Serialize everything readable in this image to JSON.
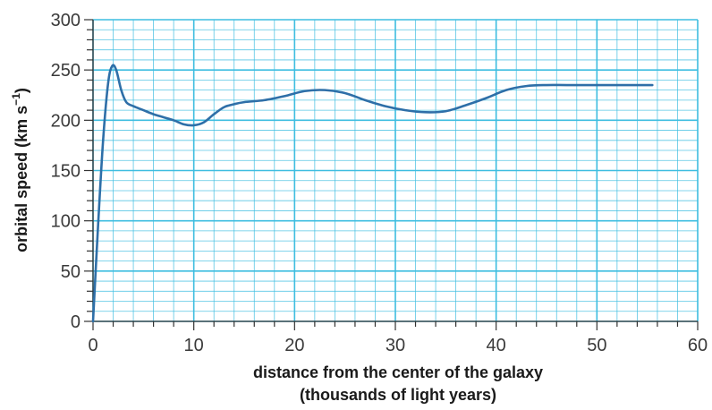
{
  "chart_data": {
    "type": "line",
    "xlabel_line1": "distance from the center of the galaxy",
    "xlabel_line2": "(thousands of light years)",
    "ylabel_main": "orbital speed (km s",
    "ylabel_sup": "−1",
    "ylabel_close": ")",
    "xlim": [
      0,
      60
    ],
    "ylim": [
      0,
      300
    ],
    "x_ticks": [
      0,
      10,
      20,
      30,
      40,
      50,
      60
    ],
    "y_ticks": [
      0,
      50,
      100,
      150,
      200,
      250,
      300
    ],
    "x_tick_labels": [
      "0",
      "10",
      "20",
      "30",
      "40",
      "50",
      "60"
    ],
    "y_tick_labels": [
      "0",
      "50",
      "100",
      "150",
      "200",
      "250",
      "300"
    ],
    "grid": true,
    "colors": {
      "grid": "#3dbde0",
      "line": "#2e6fa8",
      "axis": "#333333"
    },
    "series": [
      {
        "x": [
          0,
          0.5,
          1.0,
          1.5,
          1.9,
          2.3,
          2.8,
          3.3,
          4,
          5,
          6,
          7,
          8,
          9,
          10,
          11,
          12,
          13,
          14,
          15,
          17,
          19,
          21,
          23,
          25,
          27,
          29,
          31,
          33,
          35,
          37,
          39,
          41,
          43,
          45,
          47,
          50,
          53,
          55.5
        ],
        "y": [
          0,
          95,
          180,
          237,
          254,
          250,
          230,
          218,
          214,
          210,
          206,
          203,
          200,
          196,
          195,
          198,
          206,
          213,
          216,
          218,
          220,
          224,
          229,
          230,
          227,
          220,
          214,
          210,
          208,
          209,
          215,
          222,
          230,
          234,
          235,
          235,
          235,
          235,
          235
        ]
      }
    ]
  }
}
